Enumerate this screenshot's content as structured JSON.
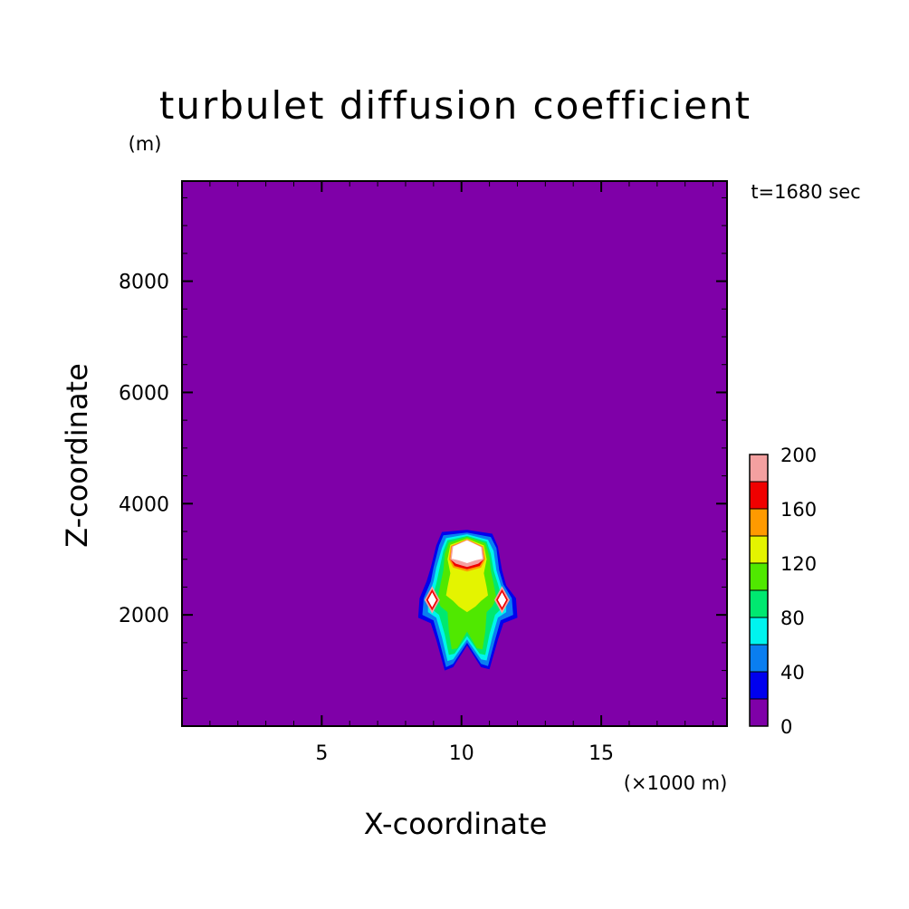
{
  "chart_data": {
    "type": "heatmap",
    "title": "turbulet diffusion coefficient",
    "y_unit_label": "(m)",
    "x_unit_label": "(×1000 m)",
    "xlabel": "X-coordinate",
    "ylabel": "Z-coordinate",
    "time_label": "t=1680 sec",
    "xlim": [
      0,
      19.5
    ],
    "ylim": [
      0,
      9800
    ],
    "x_ticks": [
      5,
      10,
      15
    ],
    "x_tick_labels": [
      "5",
      "10",
      "15"
    ],
    "y_ticks": [
      2000,
      4000,
      6000,
      8000
    ],
    "y_tick_labels": [
      "2000",
      "4000",
      "6000",
      "8000"
    ],
    "colorbar": {
      "levels": [
        0,
        20,
        40,
        60,
        80,
        100,
        120,
        140,
        160,
        180,
        200
      ],
      "colors": [
        "#7f00a8",
        "#0000ee",
        "#0a7ef0",
        "#00f4ee",
        "#00e870",
        "#50e800",
        "#e4f400",
        "#ff9a00",
        "#f00000",
        "#f4a0a0"
      ],
      "tick_labels": [
        {
          "value": 0,
          "label": "0"
        },
        {
          "value": 40,
          "label": "40"
        },
        {
          "value": 80,
          "label": "80"
        },
        {
          "value": 120,
          "label": "120"
        },
        {
          "value": 160,
          "label": "160"
        },
        {
          "value": 200,
          "label": "200"
        }
      ]
    },
    "background_value_range": [
      0,
      20
    ],
    "plume": {
      "center_x": 10.2,
      "base_z": 1000,
      "top_z": 3500,
      "peak_value_range": "above 200",
      "contours": [
        {
          "level": 20,
          "points": [
            [
              9.3,
              3490
            ],
            [
              10.2,
              3530
            ],
            [
              11.1,
              3460
            ],
            [
              11.3,
              3230
            ],
            [
              11.45,
              2800
            ],
            [
              11.6,
              2530
            ],
            [
              11.95,
              2300
            ],
            [
              12.0,
              1950
            ],
            [
              11.5,
              1850
            ],
            [
              11.3,
              1550
            ],
            [
              11.0,
              1020
            ],
            [
              10.7,
              1060
            ],
            [
              10.2,
              1450
            ],
            [
              9.7,
              1060
            ],
            [
              9.4,
              1000
            ],
            [
              9.1,
              1550
            ],
            [
              8.9,
              1850
            ],
            [
              8.45,
              1950
            ],
            [
              8.5,
              2300
            ],
            [
              8.75,
              2600
            ],
            [
              8.9,
              2850
            ],
            [
              9.1,
              3250
            ]
          ]
        },
        {
          "level": 40,
          "points": [
            [
              9.35,
              3430
            ],
            [
              10.2,
              3480
            ],
            [
              11.05,
              3400
            ],
            [
              11.25,
              3200
            ],
            [
              11.35,
              2800
            ],
            [
              11.5,
              2550
            ],
            [
              11.8,
              2300
            ],
            [
              11.85,
              2000
            ],
            [
              11.4,
              1900
            ],
            [
              11.2,
              1550
            ],
            [
              10.95,
              1080
            ],
            [
              10.7,
              1120
            ],
            [
              10.2,
              1500
            ],
            [
              9.7,
              1120
            ],
            [
              9.45,
              1060
            ],
            [
              9.2,
              1550
            ],
            [
              9.0,
              1900
            ],
            [
              8.6,
              2000
            ],
            [
              8.65,
              2300
            ],
            [
              8.9,
              2600
            ],
            [
              9.0,
              2850
            ],
            [
              9.2,
              3250
            ]
          ]
        },
        {
          "level": 60,
          "points": [
            [
              9.45,
              3380
            ],
            [
              10.2,
              3450
            ],
            [
              10.95,
              3350
            ],
            [
              11.15,
              3150
            ],
            [
              11.25,
              2800
            ],
            [
              11.4,
              2550
            ],
            [
              11.6,
              2300
            ],
            [
              11.6,
              2050
            ],
            [
              11.3,
              1950
            ],
            [
              11.1,
              1600
            ],
            [
              10.9,
              1180
            ],
            [
              10.7,
              1200
            ],
            [
              10.2,
              1560
            ],
            [
              9.7,
              1200
            ],
            [
              9.5,
              1170
            ],
            [
              9.3,
              1600
            ],
            [
              9.1,
              1950
            ],
            [
              8.8,
              2050
            ],
            [
              8.8,
              2300
            ],
            [
              9.0,
              2600
            ],
            [
              9.1,
              2850
            ],
            [
              9.3,
              3200
            ]
          ]
        },
        {
          "level": 80,
          "points": [
            [
              9.5,
              3340
            ],
            [
              10.2,
              3420
            ],
            [
              10.9,
              3320
            ],
            [
              11.05,
              3100
            ],
            [
              11.15,
              2800
            ],
            [
              11.3,
              2560
            ],
            [
              11.45,
              2300
            ],
            [
              11.4,
              2100
            ],
            [
              11.2,
              2000
            ],
            [
              11.0,
              1650
            ],
            [
              10.85,
              1280
            ],
            [
              10.65,
              1300
            ],
            [
              10.2,
              1620
            ],
            [
              9.75,
              1300
            ],
            [
              9.55,
              1280
            ],
            [
              9.4,
              1650
            ],
            [
              9.2,
              2000
            ],
            [
              8.95,
              2100
            ],
            [
              8.95,
              2300
            ],
            [
              9.1,
              2560
            ],
            [
              9.2,
              2800
            ],
            [
              9.35,
              3150
            ]
          ]
        },
        {
          "level": 100,
          "points": [
            [
              9.55,
              3300
            ],
            [
              10.2,
              3400
            ],
            [
              10.85,
              3290
            ],
            [
              11.0,
              3050
            ],
            [
              11.05,
              2800
            ],
            [
              11.15,
              2560
            ],
            [
              11.25,
              2300
            ],
            [
              11.1,
              2150
            ],
            [
              10.9,
              2050
            ],
            [
              10.85,
              1700
            ],
            [
              10.75,
              1380
            ],
            [
              10.55,
              1400
            ],
            [
              10.2,
              1700
            ],
            [
              9.85,
              1400
            ],
            [
              9.65,
              1380
            ],
            [
              9.55,
              1700
            ],
            [
              9.5,
              2050
            ],
            [
              9.25,
              2150
            ],
            [
              9.15,
              2300
            ],
            [
              9.25,
              2560
            ],
            [
              9.35,
              2800
            ],
            [
              9.4,
              3100
            ]
          ]
        },
        {
          "level": 120,
          "points": [
            [
              9.6,
              3260
            ],
            [
              10.2,
              3370
            ],
            [
              10.8,
              3250
            ],
            [
              10.9,
              3000
            ],
            [
              10.8,
              2750
            ],
            [
              10.9,
              2500
            ],
            [
              10.95,
              2350
            ],
            [
              10.7,
              2250
            ],
            [
              10.5,
              2150
            ],
            [
              10.2,
              2050
            ],
            [
              9.9,
              2150
            ],
            [
              9.7,
              2250
            ],
            [
              9.45,
              2350
            ],
            [
              9.5,
              2500
            ],
            [
              9.6,
              2750
            ],
            [
              9.5,
              3000
            ]
          ]
        },
        {
          "level": 140,
          "points": [
            [
              9.62,
              3240
            ],
            [
              10.2,
              3360
            ],
            [
              10.78,
              3230
            ],
            [
              10.85,
              3000
            ],
            [
              10.7,
              2850
            ],
            [
              10.2,
              2780
            ],
            [
              9.7,
              2850
            ],
            [
              9.55,
              3000
            ]
          ]
        },
        {
          "level": 160,
          "points": [
            [
              9.65,
              3230
            ],
            [
              10.2,
              3350
            ],
            [
              10.75,
              3220
            ],
            [
              10.8,
              3000
            ],
            [
              10.65,
              2880
            ],
            [
              10.2,
              2820
            ],
            [
              9.75,
              2880
            ],
            [
              9.6,
              3000
            ]
          ]
        },
        {
          "level": 180,
          "points": [
            [
              9.65,
              3230
            ],
            [
              10.2,
              3350
            ],
            [
              10.75,
              3220
            ],
            [
              10.8,
              3000
            ],
            [
              10.6,
              2920
            ],
            [
              10.2,
              2860
            ],
            [
              9.8,
              2920
            ],
            [
              9.6,
              3000
            ]
          ]
        },
        {
          "level": 200,
          "points": [
            [
              9.7,
              3230
            ],
            [
              10.2,
              3340
            ],
            [
              10.7,
              3220
            ],
            [
              10.75,
              3010
            ],
            [
              10.5,
              2980
            ],
            [
              10.2,
              2930
            ],
            [
              9.9,
              2980
            ],
            [
              9.65,
              3010
            ]
          ]
        }
      ],
      "side_cells": [
        {
          "x": 8.95,
          "z": 2270
        },
        {
          "x": 11.45,
          "z": 2270
        }
      ]
    }
  }
}
